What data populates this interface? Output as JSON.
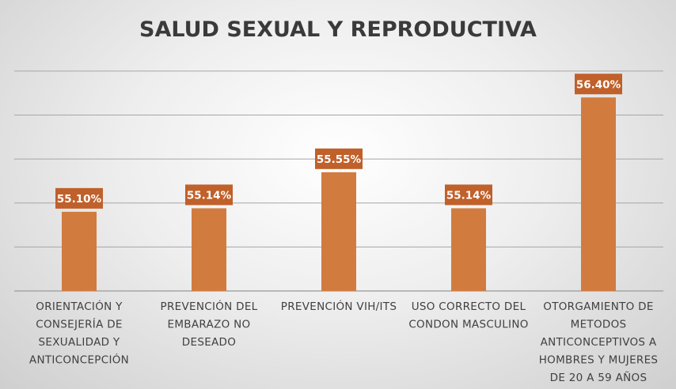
{
  "chart_data": {
    "type": "bar",
    "title": "SALUD SEXUAL Y REPRODUCTIVA",
    "categories": [
      "ORIENTACIÓN Y CONSEJERÍA DE SEXUALIDAD Y ANTICONCEPCIÓN",
      "PREVENCIÓN DEL EMBARAZO NO DESEADO",
      "PREVENCIÓN VIH/ITS",
      "USO CORRECTO DEL CONDON MASCULINO",
      "OTORGAMIENTO DE METODOS ANTICONCEPTIVOS A HOMBRES Y MUJERES DE 20 A 59 AÑOS"
    ],
    "category_lines": [
      [
        "ORIENTACIÓN Y",
        "CONSEJERÍA DE",
        "SEXUALIDAD Y",
        "ANTICONCEPCIÓN"
      ],
      [
        "PREVENCIÓN DEL",
        "EMBARAZO NO",
        "DESEADO"
      ],
      [
        "PREVENCIÓN VIH/ITS"
      ],
      [
        "USO CORRECTO DEL",
        "CONDON MASCULINO"
      ],
      [
        "OTORGAMIENTO DE",
        "METODOS",
        "ANTICONCEPTIVOS A",
        "HOMBRES Y MUJERES",
        "DE 20 A 59 AÑOS"
      ]
    ],
    "values": [
      55.1,
      55.14,
      55.55,
      55.14,
      56.4
    ],
    "data_labels": [
      "55.10%",
      "55.14%",
      "55.55%",
      "55.14%",
      "56.40%"
    ],
    "ylim": [
      54.2,
      56.6
    ],
    "y_gridlines": [
      54.2,
      54.7,
      55.2,
      55.7,
      56.2,
      56.7
    ],
    "grid": true,
    "legend": "none",
    "colors": {
      "bar": "#d27b3f",
      "label_box": "#c0602a",
      "grid": "#a6a6a6",
      "title": "#3a3a3a"
    }
  }
}
